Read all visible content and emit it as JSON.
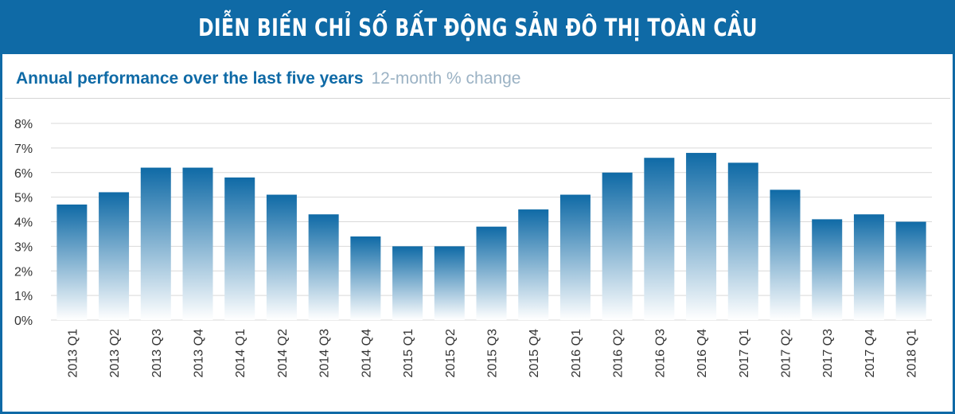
{
  "header": {
    "title": "DIỄN BIẾN CHỈ SỐ BẤT ĐỘNG SẢN ĐÔ THỊ TOÀN CẦU"
  },
  "colors": {
    "banner": "#0f6aa6",
    "bar_top": "#0f6aa6",
    "bar_bottom": "#ffffff",
    "grid": "#d9d9d9"
  },
  "chart_data": {
    "type": "bar",
    "title": "Annual performance over the last five years",
    "subtitle": "12-month % change",
    "categories": [
      "2013 Q1",
      "2013 Q2",
      "2013 Q3",
      "2013 Q4",
      "2014 Q1",
      "2014 Q2",
      "2014 Q3",
      "2014 Q4",
      "2015 Q1",
      "2015 Q2",
      "2015 Q3",
      "2015 Q4",
      "2016 Q1",
      "2016 Q2",
      "2016 Q3",
      "2016 Q4",
      "2017 Q1",
      "2017 Q2",
      "2017 Q3",
      "2017 Q4",
      "2018 Q1"
    ],
    "values": [
      4.7,
      5.2,
      6.2,
      6.2,
      5.8,
      5.1,
      4.3,
      3.4,
      3.0,
      3.0,
      3.8,
      4.5,
      5.1,
      6.0,
      6.6,
      6.8,
      6.4,
      5.3,
      4.1,
      4.3,
      4.0
    ],
    "ylim": [
      0,
      8
    ],
    "yticks": [
      "0%",
      "1%",
      "2%",
      "3%",
      "4%",
      "5%",
      "6%",
      "7%",
      "8%"
    ],
    "grid": true
  }
}
